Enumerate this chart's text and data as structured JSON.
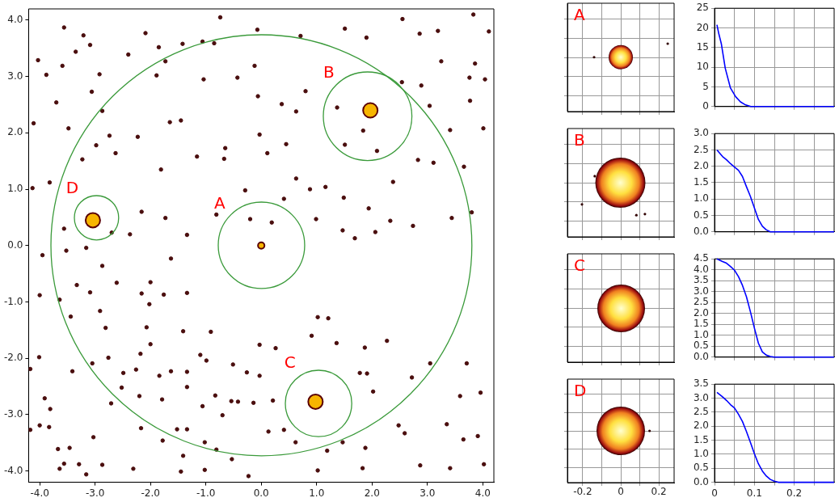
{
  "chart_data": [
    {
      "type": "scatter",
      "xlim": [
        -4.2,
        4.2
      ],
      "ylim": [
        -4.2,
        4.2
      ],
      "xticks": [
        {
          "value": -4,
          "label": "-4.0"
        },
        {
          "value": -3,
          "label": "-3.0"
        },
        {
          "value": -2,
          "label": "-2.0"
        },
        {
          "value": -1,
          "label": "-1.0"
        },
        {
          "value": 0,
          "label": "0.0"
        },
        {
          "value": 1,
          "label": "1.0"
        },
        {
          "value": 2,
          "label": "2.0"
        },
        {
          "value": 3,
          "label": "3.0"
        },
        {
          "value": 4,
          "label": "4.0"
        }
      ],
      "yticks": [
        {
          "value": -4,
          "label": "-4.0"
        },
        {
          "value": -3,
          "label": "-3.0"
        },
        {
          "value": -2,
          "label": "-2.0"
        },
        {
          "value": -1,
          "label": "-1.0"
        },
        {
          "value": 0,
          "label": "0.0"
        },
        {
          "value": 1,
          "label": "1.0"
        },
        {
          "value": 2,
          "label": "2.0"
        },
        {
          "value": 3,
          "label": "3.0"
        },
        {
          "value": 4,
          "label": "4.0"
        }
      ],
      "annotations": [
        "A",
        "B",
        "C",
        "D"
      ],
      "series": [
        {
          "type": "scatter",
          "color": "#4a0e0e",
          "x": [
            -3.56,
            -3.21,
            -3.09,
            -3.35,
            -4.03,
            -3.59,
            -2.92,
            -3.88,
            -3.7,
            -3.06,
            -2.87,
            -4.11,
            -3.48,
            -2.74,
            -2.23,
            -2.98,
            -3.23,
            -2.63,
            -3.82,
            -4.13,
            -2.4,
            -2.09,
            -1.85,
            -1.42,
            -1.06,
            -0.74,
            -0.85,
            -1.73,
            -1.89,
            -1.04,
            -0.43,
            -0.12,
            -0.07,
            0.71,
            1.51,
            1.9,
            2.55,
            2.86,
            3.19,
            3.83,
            4.11,
            3.86,
            3.25,
            3.76,
            4.04,
            2.89,
            3.04,
            3.77,
            3.41,
            4.01,
            3.66,
            2.83,
            3.11,
            2.38,
            1.49,
            1.16,
            0.88,
            0.63,
            0.41,
            1.94,
            2.33,
            2.74,
            3.44,
            3.8,
            1.69,
            2.06,
            1.47,
            0.99,
            0.19,
            -0.2,
            -0.81,
            -1.34,
            -1.73,
            -2.16,
            -2.37,
            -2.7,
            -3.16,
            -3.56,
            -1.65,
            -1.45,
            -1.81,
            -1.16,
            -0.65,
            -0.67,
            -0.03,
            0.11,
            0.45,
            -0.06,
            0.37,
            0.63,
            0.8,
            1.37,
            1.84,
            2.09,
            1.51,
            2.54,
            -0.29,
            -3.95,
            -3.52,
            -4.0,
            -3.64,
            -3.33,
            -2.87,
            -3.09,
            -3.44,
            -2.91,
            -2.81,
            -2.61,
            -2.16,
            -2.02,
            -2.0,
            -1.76,
            -1.63,
            -1.34,
            -1.41,
            -2.07,
            -2.0,
            -2.18,
            -2.76,
            -3.05,
            -4.01,
            -4.17,
            -3.41,
            -2.49,
            -2.26,
            -1.63,
            -1.34,
            -1.84,
            -1.1,
            -0.99,
            -0.91,
            -0.51,
            -0.26,
            -0.03,
            0.26,
            -0.03,
            0.91,
            1.02,
            1.21,
            1.36,
            1.87,
            2.27,
            1.78,
            1.91,
            2.72,
            3.05,
            3.71,
            3.96,
            3.59,
            3.35,
            3.65,
            3.91,
            4.02,
            3.41,
            2.87,
            2.48,
            2.59,
            2.02,
            1.88,
            1.83,
            1.47,
            1.19,
            1.02,
            0.62,
            0.41,
            0.13,
            0.21,
            -0.14,
            -0.42,
            -0.54,
            -0.7,
            -0.83,
            -1.06,
            -1.02,
            -0.81,
            -0.53,
            -0.23,
            -1.02,
            -1.45,
            -1.41,
            -1.78,
            -1.52,
            -1.34,
            -2.31,
            -2.87,
            -3.16,
            -3.29,
            -3.56,
            -3.64,
            -3.67,
            -3.46,
            -3.03,
            -3.83,
            -4.0,
            -4.17,
            -3.91,
            -3.81,
            -2.71,
            -2.17,
            -2.2,
            -2.52,
            -1.79,
            -1.34
          ],
          "values": [
            3.87,
            3.73,
            3.56,
            3.44,
            3.29,
            3.19,
            3.04,
            3.03,
            2.54,
            2.73,
            2.39,
            2.17,
            2.08,
            1.95,
            1.93,
            1.78,
            1.53,
            1.64,
            1.12,
            1.02,
            3.39,
            3.77,
            3.52,
            3.58,
            3.62,
            4.05,
            3.59,
            3.27,
            3.02,
            2.95,
            2.98,
            3.19,
            3.83,
            3.72,
            3.85,
            3.69,
            4.02,
            3.76,
            3.81,
            4.1,
            3.8,
            3.23,
            3.27,
            2.98,
            2.95,
            2.84,
            2.48,
            2.57,
            2.05,
            2.08,
            1.4,
            1.52,
            1.47,
            1.13,
            0.85,
            1.04,
            1.0,
            1.19,
            0.83,
            0.66,
            0.44,
            0.35,
            0.49,
            0.59,
            0.13,
            0.24,
            0.27,
            0.47,
            0.41,
            0.47,
            0.55,
            0.19,
            0.49,
            0.6,
            0.2,
            0.23,
            -0.04,
            0.3,
            2.19,
            2.22,
            1.35,
            1.58,
            1.73,
            1.54,
            1.97,
            1.64,
            1.8,
            2.65,
            2.51,
            2.38,
            2.74,
            2.45,
            2.04,
            1.68,
            1.79,
            2.9,
            0.98,
            -0.17,
            -0.09,
            -0.88,
            -0.96,
            -0.7,
            -0.36,
            -0.83,
            -1.26,
            -1.16,
            -1.46,
            -0.66,
            -0.85,
            -1.04,
            -0.65,
            -0.87,
            -0.23,
            -0.84,
            -1.52,
            -1.45,
            -1.75,
            -1.92,
            -1.99,
            -2.09,
            -1.98,
            -2.19,
            -2.23,
            -2.26,
            -2.2,
            -2.23,
            -2.24,
            -2.31,
            -1.94,
            -2.04,
            -1.53,
            -2.11,
            -2.25,
            -1.76,
            -1.82,
            -2.31,
            -1.6,
            -1.27,
            -1.29,
            -1.73,
            -1.81,
            -1.69,
            -2.26,
            -2.27,
            -2.34,
            -2.09,
            -2.09,
            -2.61,
            -2.67,
            -3.17,
            -3.44,
            -3.38,
            -3.88,
            -3.95,
            -3.9,
            -3.19,
            -3.33,
            -2.59,
            -3.59,
            -3.95,
            -3.49,
            -3.64,
            -3.99,
            -3.49,
            -3.27,
            -3.3,
            -2.75,
            -2.79,
            -2.77,
            -2.76,
            -3.01,
            -2.66,
            -2.85,
            -3.49,
            -3.62,
            -3.79,
            -4.09,
            -3.98,
            -4.01,
            -3.73,
            -3.46,
            -3.26,
            -3.26,
            -3.96,
            -3.89,
            -4.06,
            -3.88,
            -3.87,
            -3.96,
            -3.61,
            -3.59,
            -3.4,
            -3.22,
            -3.19,
            -3.27,
            -2.71,
            -2.9,
            -2.8,
            -3.24,
            -2.67,
            -2.52,
            -2.73,
            -2.51
          ]
        },
        {
          "type": "bubble",
          "color": "#f7b500",
          "x": [
            0,
            1.97,
            0.98,
            -3.04
          ],
          "values": [
            0,
            2.4,
            -2.77,
            0.45
          ],
          "sizes": [
            0.2,
            1,
            1,
            1
          ]
        }
      ]
    },
    {
      "type": "other",
      "annotations": [
        "A"
      ]
    },
    {
      "type": "other",
      "annotations": [
        "B"
      ]
    },
    {
      "type": "other",
      "annotations": [
        "C"
      ]
    },
    {
      "type": "other",
      "annotations": [
        "D",
        "-0.2",
        "0",
        "0.2"
      ]
    },
    {
      "type": "line",
      "xlim": [
        0,
        0.3
      ],
      "ylim": [
        0,
        25
      ],
      "grid": true,
      "tick_labels": "y",
      "xticks": [
        0,
        {
          "value": 0.05,
          "label": null
        },
        0.1,
        {
          "value": 0.15,
          "label": null
        },
        0.2,
        {
          "value": 0.25,
          "label": null
        }
      ],
      "yticks": [
        0,
        5,
        10,
        15,
        20,
        25
      ],
      "series": [
        {
          "color": "#0000ff",
          "x": [
            0.006,
            0.011,
            0.017,
            0.027,
            0.04,
            0.053,
            0.065,
            0.078,
            0.091,
            0.15,
            0.2,
            0.25,
            0.3
          ],
          "values": [
            20.8,
            18.4,
            16,
            9.7,
            4.7,
            2.5,
            1.2,
            0.4,
            0,
            0,
            0,
            0,
            0
          ]
        }
      ]
    },
    {
      "type": "line",
      "xlim": [
        0,
        0.3
      ],
      "ylim": [
        0,
        3
      ],
      "grid": true,
      "tick_labels": "y",
      "xticks": [
        0,
        {
          "value": 0.05,
          "label": null
        },
        0.1,
        {
          "value": 0.15,
          "label": null
        },
        0.2,
        {
          "value": 0.25,
          "label": null
        }
      ],
      "yticks": [
        {
          "value": 0,
          "label": "0.0"
        },
        0.5,
        {
          "value": 1,
          "label": "1.0"
        },
        1.5,
        {
          "value": 2,
          "label": "2.0"
        },
        2.5,
        {
          "value": 3,
          "label": "3.0"
        }
      ],
      "series": [
        {
          "color": "#0000ff",
          "x": [
            0.006,
            0.02,
            0.03,
            0.04,
            0.05,
            0.06,
            0.07,
            0.08,
            0.09,
            0.1,
            0.11,
            0.12,
            0.13,
            0.14,
            0.2,
            0.25,
            0.3
          ],
          "values": [
            2.5,
            2.3,
            2.2,
            2.08,
            1.98,
            1.88,
            1.69,
            1.38,
            1.08,
            0.73,
            0.38,
            0.17,
            0.06,
            0,
            0,
            0,
            0
          ]
        }
      ]
    },
    {
      "type": "line",
      "xlim": [
        0,
        0.3
      ],
      "ylim": [
        0,
        4.5
      ],
      "grid": true,
      "tick_labels": "y",
      "xticks": [
        0,
        {
          "value": 0.05,
          "label": null
        },
        0.1,
        {
          "value": 0.15,
          "label": null
        },
        0.2,
        {
          "value": 0.25,
          "label": null
        }
      ],
      "yticks": [
        {
          "value": 0,
          "label": "0.0"
        },
        0.5,
        {
          "value": 1,
          "label": "1.0"
        },
        1.5,
        {
          "value": 2,
          "label": "2.0"
        },
        2.5,
        {
          "value": 3,
          "label": "3.0"
        },
        3.5,
        {
          "value": 4,
          "label": "4.0"
        },
        4.5
      ],
      "series": [
        {
          "color": "#0000ff",
          "x": [
            0.006,
            0.02,
            0.03,
            0.04,
            0.05,
            0.06,
            0.07,
            0.08,
            0.09,
            0.1,
            0.11,
            0.12,
            0.13,
            0.14,
            0.15,
            0.2,
            0.25,
            0.3
          ],
          "values": [
            4.5,
            4.38,
            4.3,
            4.15,
            3.98,
            3.69,
            3.29,
            2.77,
            2.08,
            1.33,
            0.64,
            0.24,
            0.09,
            0.03,
            0,
            0,
            0,
            0
          ]
        }
      ]
    },
    {
      "type": "line",
      "xlim": [
        0,
        0.3
      ],
      "ylim": [
        0,
        3.5
      ],
      "grid": true,
      "xticks": [
        0,
        {
          "value": 0.05,
          "label": null
        },
        0.1,
        {
          "value": 0.15,
          "label": null
        },
        0.2,
        {
          "value": 0.25,
          "label": null
        }
      ],
      "yticks": [
        {
          "value": 0,
          "label": "0.0"
        },
        0.5,
        {
          "value": 1,
          "label": "1.0"
        },
        1.5,
        {
          "value": 2,
          "label": "2.0"
        },
        2.5,
        {
          "value": 3,
          "label": "3.0"
        },
        3.5
      ],
      "series": [
        {
          "color": "#0000ff",
          "x": [
            0.006,
            0.02,
            0.03,
            0.04,
            0.05,
            0.06,
            0.07,
            0.08,
            0.09,
            0.1,
            0.11,
            0.12,
            0.13,
            0.14,
            0.15,
            0.16,
            0.2,
            0.25,
            0.3
          ],
          "values": [
            3.21,
            3.05,
            2.92,
            2.77,
            2.65,
            2.43,
            2.17,
            1.81,
            1.42,
            1.02,
            0.66,
            0.4,
            0.22,
            0.1,
            0.04,
            0,
            0,
            0,
            0
          ]
        }
      ]
    }
  ]
}
